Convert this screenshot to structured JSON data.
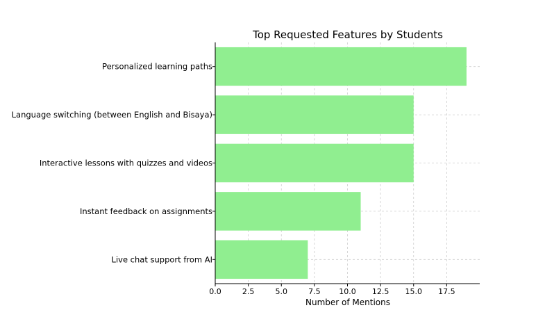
{
  "chart_data": {
    "type": "bar",
    "orientation": "horizontal",
    "title": "Top Requested Features by Students",
    "xlabel": "Number of Mentions",
    "ylabel": "",
    "categories": [
      "Personalized learning paths",
      "Language switching (between English and Bisaya)",
      "Interactive lessons with quizzes and videos",
      "Instant feedback on assignments",
      "Live chat support from AI"
    ],
    "values": [
      19,
      15,
      15,
      11,
      7
    ],
    "xlim": [
      0,
      20
    ],
    "xticks": [
      0,
      2.5,
      5,
      7.5,
      10,
      12.5,
      15,
      17.5
    ],
    "xtick_labels": [
      "0.0",
      "2.5",
      "5.0",
      "7.5",
      "10.0",
      "12.5",
      "15.0",
      "17.5"
    ],
    "bar_color": "#90ee90",
    "grid": true,
    "grid_style": "dashed",
    "legend": "none"
  }
}
